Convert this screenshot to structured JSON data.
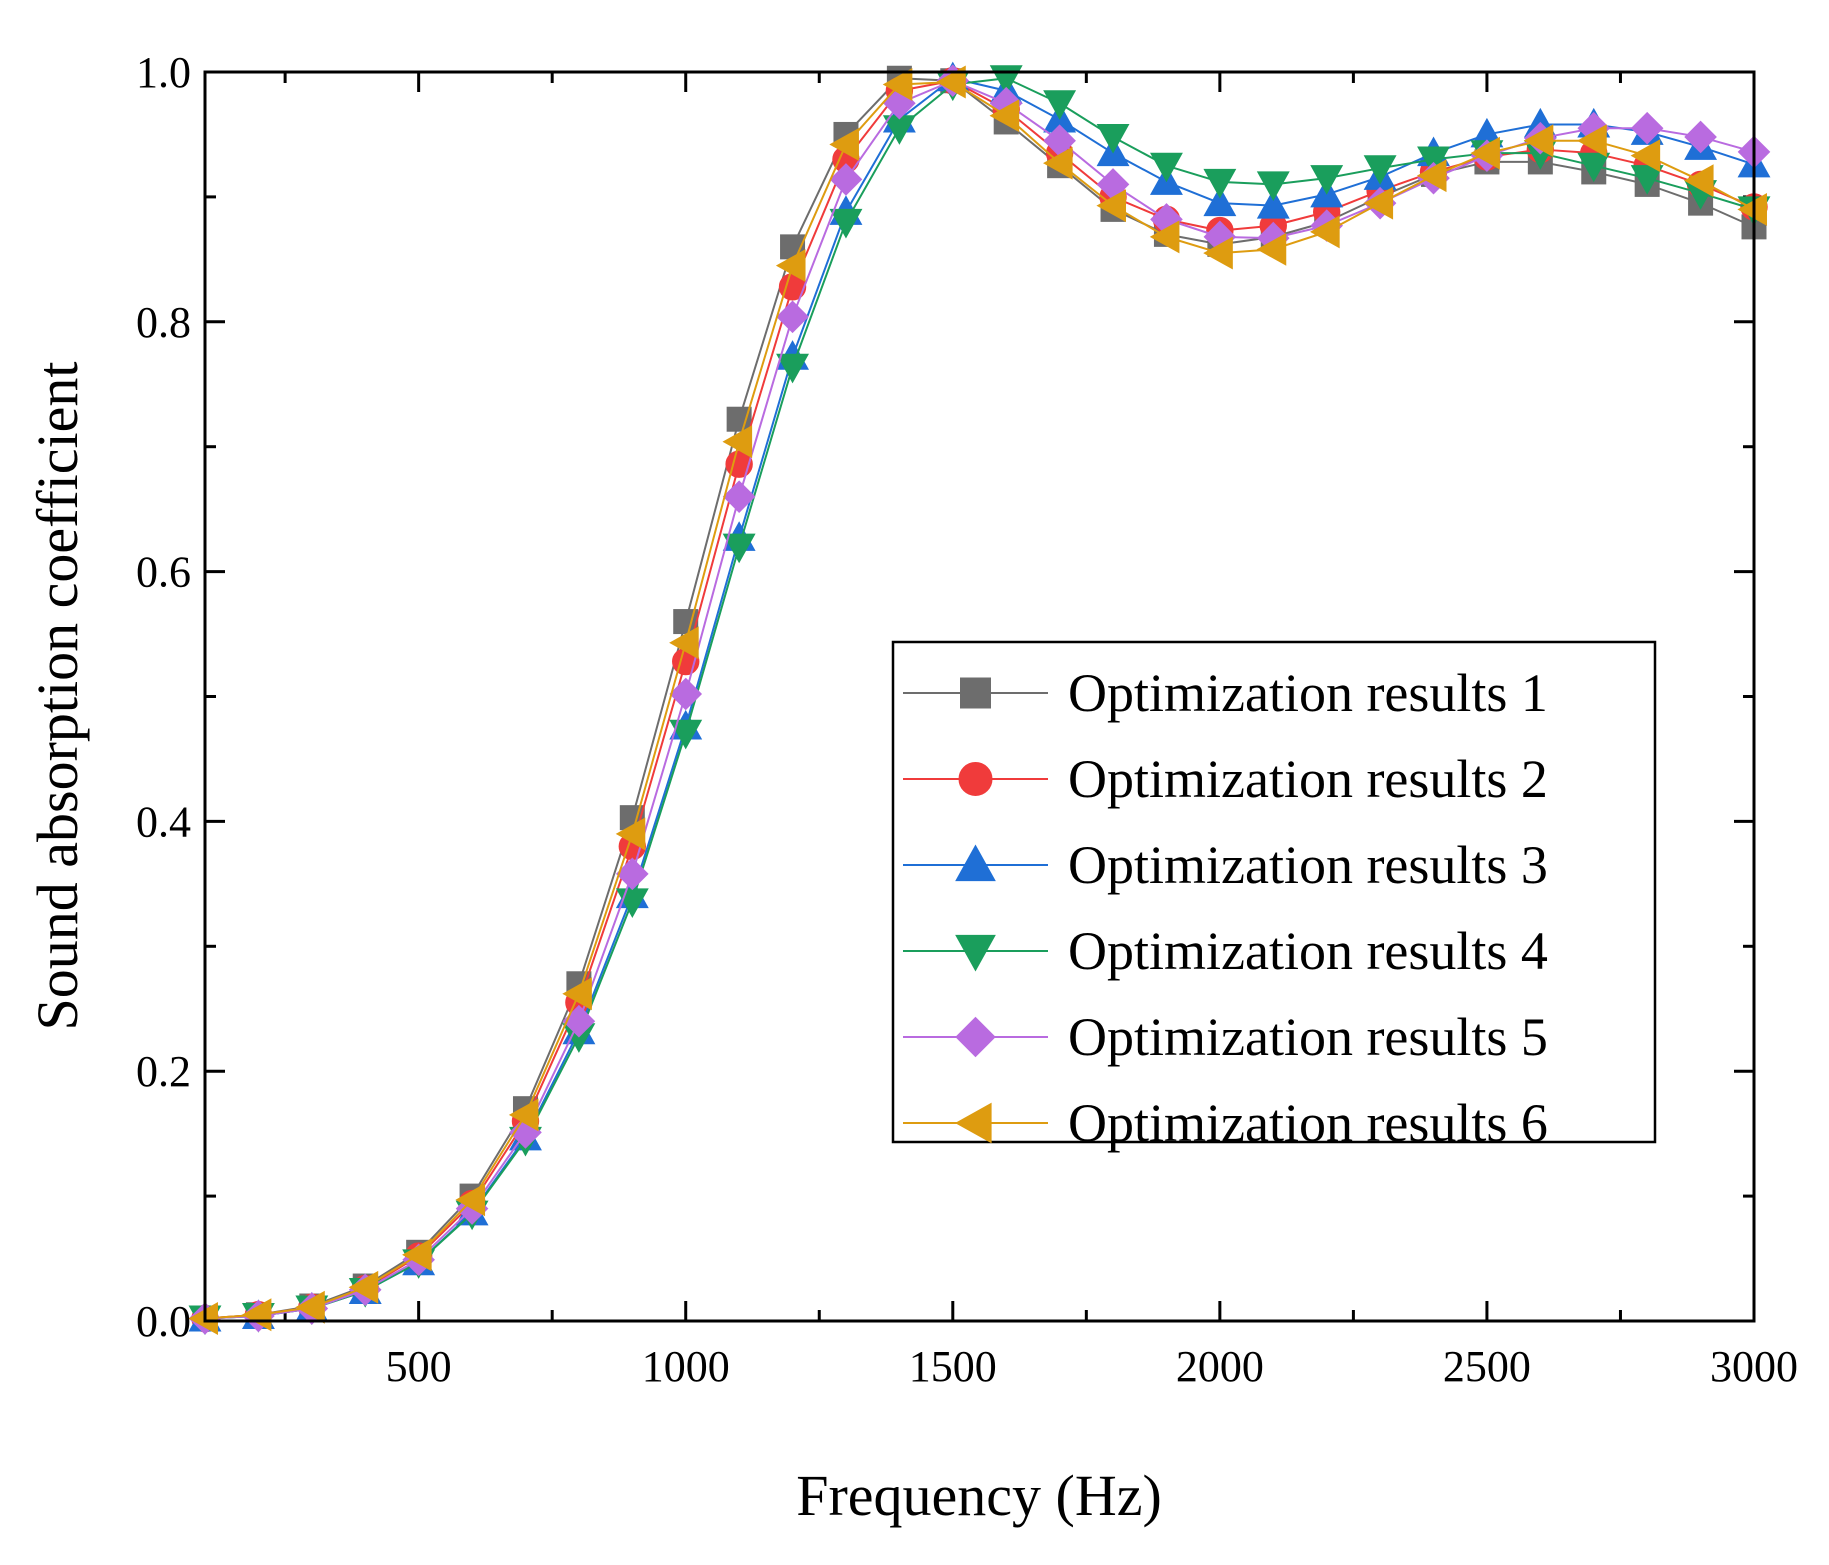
{
  "chart_data": {
    "type": "line",
    "title": "",
    "xlabel": "Frequency (Hz)",
    "ylabel": "Sound absorption coefficient",
    "xlim": [
      100,
      3000
    ],
    "ylim": [
      0,
      1.0
    ],
    "xticks": [
      500,
      1000,
      1500,
      2000,
      2500,
      3000
    ],
    "xtick_labels": [
      "500",
      "1000",
      "1500",
      "2000",
      "2500",
      "3000"
    ],
    "yticks": [
      0.0,
      0.2,
      0.4,
      0.6,
      0.8,
      1.0
    ],
    "ytick_labels": [
      "0.0",
      "0.2",
      "0.4",
      "0.6",
      "0.8",
      "1.0"
    ],
    "legend_position": "center-right",
    "x": [
      100,
      200,
      300,
      400,
      500,
      600,
      700,
      800,
      900,
      1000,
      1100,
      1200,
      1300,
      1400,
      1500,
      1600,
      1700,
      1800,
      1900,
      2000,
      2100,
      2200,
      2300,
      2400,
      2500,
      2600,
      2700,
      2800,
      2900,
      3000
    ],
    "series": [
      {
        "name": "Optimization results 1",
        "color": "#6d6d6d",
        "marker": "square",
        "values": [
          0.002,
          0.005,
          0.012,
          0.028,
          0.055,
          0.1,
          0.17,
          0.27,
          0.403,
          0.56,
          0.722,
          0.86,
          0.95,
          0.995,
          0.993,
          0.96,
          0.925,
          0.89,
          0.87,
          0.862,
          0.868,
          0.88,
          0.9,
          0.918,
          0.928,
          0.928,
          0.92,
          0.91,
          0.895,
          0.876
        ]
      },
      {
        "name": "Optimization results 2",
        "color": "#f03b3b",
        "marker": "circle",
        "values": [
          0.002,
          0.005,
          0.011,
          0.026,
          0.052,
          0.094,
          0.16,
          0.255,
          0.38,
          0.528,
          0.686,
          0.828,
          0.93,
          0.985,
          0.993,
          0.97,
          0.935,
          0.9,
          0.882,
          0.873,
          0.877,
          0.888,
          0.905,
          0.92,
          0.932,
          0.938,
          0.935,
          0.925,
          0.91,
          0.892
        ]
      },
      {
        "name": "Optimization results 3",
        "color": "#1f6fd6",
        "marker": "triangle-up",
        "values": [
          0.002,
          0.004,
          0.01,
          0.024,
          0.047,
          0.087,
          0.147,
          0.232,
          0.341,
          0.476,
          0.627,
          0.772,
          0.888,
          0.962,
          0.995,
          0.985,
          0.962,
          0.935,
          0.912,
          0.895,
          0.893,
          0.902,
          0.916,
          0.935,
          0.95,
          0.958,
          0.958,
          0.952,
          0.94,
          0.926
        ]
      },
      {
        "name": "Optimization results 4",
        "color": "#1a9e5c",
        "marker": "triangle-down",
        "values": [
          0.002,
          0.004,
          0.01,
          0.024,
          0.047,
          0.086,
          0.145,
          0.228,
          0.336,
          0.471,
          0.62,
          0.764,
          0.88,
          0.955,
          0.99,
          0.995,
          0.975,
          0.948,
          0.925,
          0.912,
          0.91,
          0.915,
          0.923,
          0.93,
          0.935,
          0.935,
          0.925,
          0.915,
          0.903,
          0.89
        ]
      },
      {
        "name": "Optimization results 5",
        "color": "#b96be0",
        "marker": "diamond",
        "values": [
          0.002,
          0.004,
          0.01,
          0.025,
          0.049,
          0.09,
          0.151,
          0.24,
          0.358,
          0.502,
          0.66,
          0.804,
          0.914,
          0.975,
          0.993,
          0.975,
          0.945,
          0.91,
          0.882,
          0.868,
          0.867,
          0.877,
          0.895,
          0.915,
          0.933,
          0.947,
          0.955,
          0.955,
          0.948,
          0.936
        ]
      },
      {
        "name": "Optimization results 6",
        "color": "#de9c10",
        "marker": "triangle-left",
        "values": [
          0.002,
          0.005,
          0.011,
          0.027,
          0.053,
          0.097,
          0.165,
          0.262,
          0.39,
          0.543,
          0.704,
          0.845,
          0.942,
          0.99,
          0.992,
          0.965,
          0.927,
          0.893,
          0.868,
          0.855,
          0.858,
          0.872,
          0.895,
          0.917,
          0.935,
          0.945,
          0.945,
          0.933,
          0.913,
          0.89
        ]
      }
    ]
  }
}
